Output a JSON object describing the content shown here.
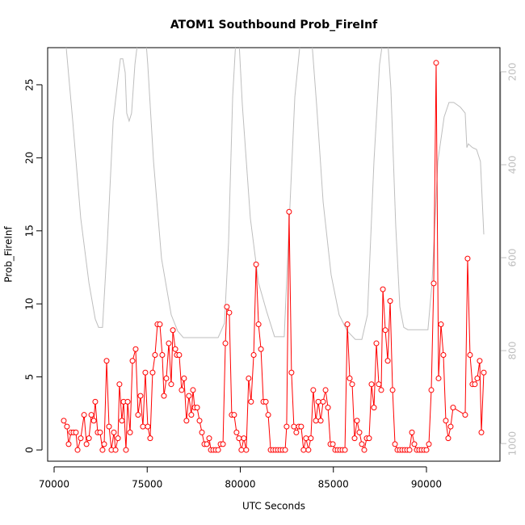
{
  "chart_data": {
    "type": "line",
    "title": "ATOM1 Southbound Prob_FireInf",
    "x_label": "UTC Seconds",
    "y_label": "Prob_FireInf",
    "xlim": [
      69653,
      93948
    ],
    "xticks": [
      70000,
      75000,
      80000,
      85000,
      90000
    ],
    "ylim": [
      -0.77,
      27.54
    ],
    "yticks": [
      0,
      5,
      10,
      15,
      20,
      25
    ],
    "y2lim": [
      1038,
      148
    ],
    "y2ticks": [
      200,
      400,
      600,
      800,
      1000
    ],
    "grid": false,
    "series": [
      {
        "name": "Prob_FireInf",
        "color": "#ff0000",
        "axis": "y",
        "markers": true,
        "x": [
          70520,
          70690,
          70780,
          70910,
          71040,
          71170,
          71260,
          71430,
          71610,
          71740,
          71870,
          72000,
          72130,
          72210,
          72340,
          72470,
          72600,
          72690,
          72820,
          72950,
          73080,
          73210,
          73300,
          73430,
          73510,
          73640,
          73730,
          73860,
          73950,
          74080,
          74210,
          74380,
          74510,
          74640,
          74770,
          74900,
          75030,
          75160,
          75290,
          75420,
          75550,
          75680,
          75810,
          75900,
          76030,
          76160,
          76290,
          76380,
          76510,
          76590,
          76720,
          76850,
          76980,
          77110,
          77240,
          77370,
          77460,
          77550,
          77680,
          77810,
          77940,
          78070,
          78200,
          78330,
          78420,
          78550,
          78680,
          78810,
          78940,
          79070,
          79200,
          79280,
          79410,
          79540,
          79670,
          79800,
          79930,
          80060,
          80190,
          80320,
          80450,
          80580,
          80720,
          80850,
          80980,
          81110,
          81240,
          81370,
          81500,
          81630,
          81760,
          81890,
          82020,
          82150,
          82280,
          82410,
          82490,
          82620,
          82750,
          82880,
          83010,
          83140,
          83270,
          83400,
          83530,
          83660,
          83790,
          83920,
          84060,
          84190,
          84320,
          84450,
          84580,
          84710,
          84840,
          84970,
          85100,
          85230,
          85360,
          85490,
          85620,
          85750,
          85880,
          86010,
          86140,
          86270,
          86400,
          86530,
          86660,
          86790,
          86920,
          87050,
          87180,
          87310,
          87440,
          87570,
          87660,
          87790,
          87920,
          88050,
          88180,
          88310,
          88440,
          88570,
          88700,
          88830,
          88960,
          89090,
          89220,
          89350,
          89480,
          89610,
          89740,
          89870,
          90000,
          90130,
          90260,
          90390,
          90520,
          90650,
          90780,
          90910,
          91040,
          91170,
          91300,
          91430,
          92080,
          92210,
          92340,
          92470,
          92600,
          92730,
          92860,
          92950,
          93080
        ],
        "values": [
          2.0,
          1.6,
          0.4,
          1.2,
          1.2,
          1.2,
          0,
          0.8,
          2.4,
          0.4,
          0.8,
          2.4,
          2.0,
          3.3,
          1.2,
          1.2,
          0,
          0.4,
          6.1,
          1.6,
          0,
          1.2,
          0,
          0.8,
          4.5,
          2.0,
          3.3,
          0,
          3.3,
          1.2,
          6.1,
          6.9,
          2.4,
          3.7,
          1.6,
          5.3,
          1.6,
          0.8,
          5.3,
          6.5,
          8.6,
          8.6,
          6.5,
          3.7,
          4.9,
          7.3,
          4.5,
          8.2,
          6.9,
          6.5,
          6.5,
          4.1,
          4.9,
          2.0,
          3.7,
          2.4,
          4.1,
          2.9,
          2.9,
          2.0,
          1.2,
          0.4,
          0.4,
          0.8,
          0,
          0,
          0,
          0,
          0.4,
          0.4,
          7.3,
          9.8,
          9.4,
          2.4,
          2.4,
          1.2,
          0.8,
          0,
          0.8,
          0,
          4.9,
          3.3,
          6.5,
          12.7,
          8.6,
          6.9,
          3.3,
          3.3,
          2.4,
          0,
          0,
          0,
          0,
          0,
          0,
          0,
          1.6,
          16.3,
          5.3,
          1.6,
          1.2,
          1.6,
          1.6,
          0,
          0.8,
          0,
          0.8,
          4.1,
          2.0,
          3.3,
          2.0,
          3.3,
          4.1,
          2.9,
          0.4,
          0.4,
          0,
          0,
          0,
          0,
          0,
          8.6,
          4.9,
          4.5,
          0.8,
          2.0,
          1.2,
          0.4,
          0,
          0.8,
          0.8,
          4.5,
          2.9,
          7.3,
          4.5,
          4.1,
          11.0,
          8.2,
          6.1,
          10.2,
          4.1,
          0.4,
          0,
          0,
          0,
          0,
          0,
          0,
          1.2,
          0.4,
          0,
          0,
          0,
          0,
          0,
          0.4,
          4.1,
          11.4,
          26.5,
          4.9,
          8.6,
          6.5,
          2.0,
          0.8,
          1.6,
          2.9,
          2.4,
          13.1,
          6.5,
          4.5,
          4.5,
          4.9,
          6.1,
          1.2,
          5.3
        ]
      },
      {
        "color": "#bebebe",
        "axis": "y2",
        "markers": false,
        "x": [
          70650,
          71000,
          71430,
          71870,
          72210,
          72390,
          72600,
          72860,
          73170,
          73470,
          73560,
          73690,
          73820,
          73900,
          74030,
          74160,
          74340,
          74550,
          74900,
          75030,
          75340,
          75770,
          76290,
          76640,
          76940,
          77500,
          78810,
          79150,
          79370,
          79590,
          79760,
          79930,
          80110,
          80540,
          80980,
          81410,
          81840,
          82360,
          82580,
          82930,
          83230,
          83840,
          84100,
          84450,
          84880,
          85310,
          85750,
          86180,
          86530,
          86830,
          87180,
          87480,
          87660,
          87920,
          88090,
          88350,
          88570,
          88780,
          89000,
          90080,
          90300,
          90610,
          90950,
          91210,
          91470,
          91820,
          92080,
          92170,
          92250,
          92470,
          92690,
          92900,
          93080
        ],
        "values": [
          148,
          306,
          515,
          654,
          732,
          750,
          750,
          567,
          306,
          202,
          172,
          172,
          202,
          289,
          306,
          289,
          184,
          115,
          115,
          184,
          393,
          602,
          723,
          758,
          772,
          772,
          772,
          741,
          567,
          254,
          132,
          132,
          271,
          515,
          654,
          715,
          770,
          770,
          567,
          254,
          132,
          132,
          271,
          480,
          637,
          723,
          758,
          776,
          776,
          723,
          393,
          184,
          132,
          132,
          237,
          532,
          706,
          750,
          755,
          755,
          654,
          393,
          297,
          266,
          266,
          276,
          289,
          363,
          355,
          363,
          367,
          393,
          550
        ]
      }
    ]
  }
}
